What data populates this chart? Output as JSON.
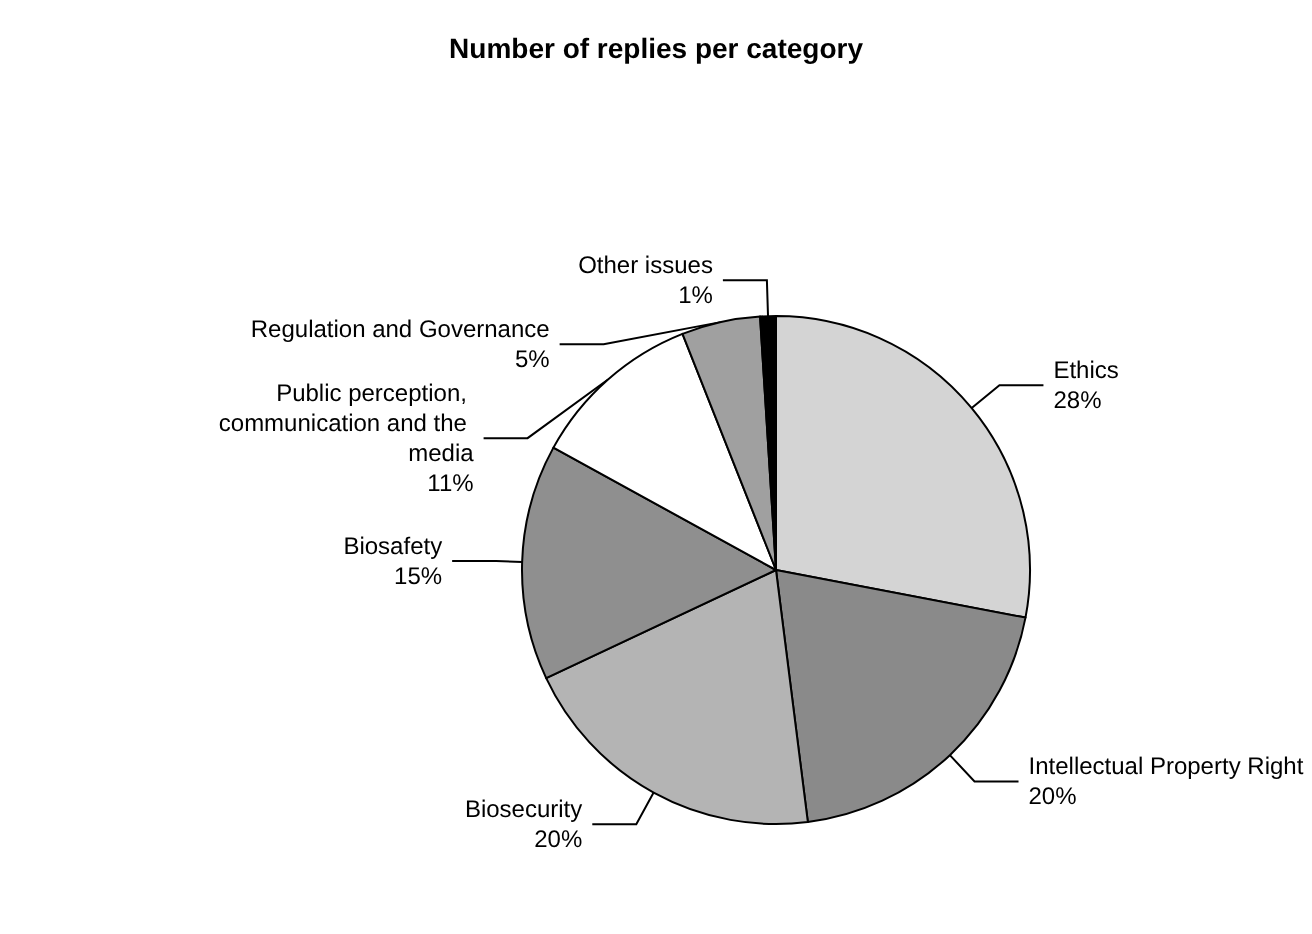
{
  "chart_data": {
    "type": "pie",
    "title": "Number of replies per category",
    "categories": [
      "Ethics",
      "Intellectual Property Right",
      "Biosecurity",
      "Biosafety",
      "Public perception, communication and the media",
      "Regulation and Governance",
      "Other issues"
    ],
    "values": [
      28,
      20,
      20,
      15,
      11,
      5,
      1
    ],
    "value_labels": [
      "28%",
      "20%",
      "20%",
      "15%",
      "11%",
      "5%",
      "1%"
    ],
    "colors": [
      "#d4d4d4",
      "#8a8a8a",
      "#b4b4b4",
      "#8f8f8f",
      "#ffffff",
      "#a0a0a0",
      "#000000"
    ],
    "legend": false
  }
}
